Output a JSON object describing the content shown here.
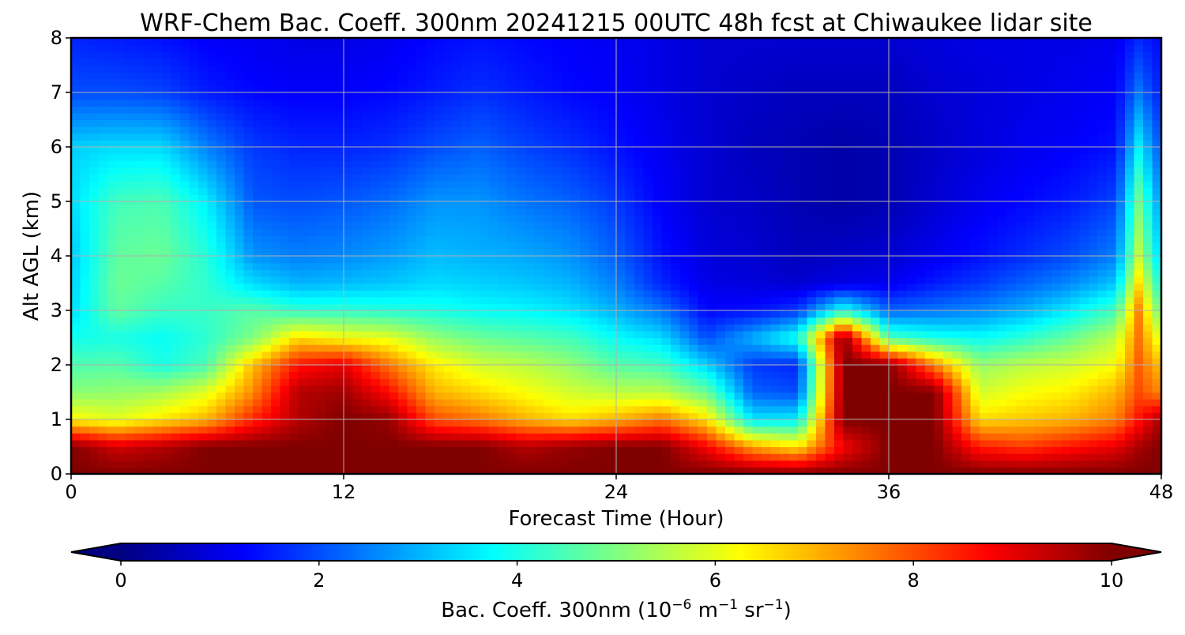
{
  "chart_data": {
    "type": "heatmap",
    "title": "WRF-Chem Bac. Coeff. 300nm  20241215 00UTC 48h fcst at Chiwaukee lidar site",
    "xlabel": "Forecast Time (Hour)",
    "ylabel": "Alt AGL (km)",
    "xlim": [
      0,
      48
    ],
    "ylim": [
      0,
      8
    ],
    "xticks": [
      0,
      12,
      24,
      36,
      48
    ],
    "yticks": [
      0,
      1,
      2,
      3,
      4,
      5,
      6,
      7,
      8
    ],
    "grid": true,
    "colormap": "jet",
    "colorbar": {
      "label_prefix": "Bac. Coeff. 300nm  (10",
      "label_exp1": "−6",
      "label_mid": " m",
      "label_exp2": "−1",
      "label_mid2": " sr",
      "label_exp3": "−1",
      "label_suffix": ")",
      "min": 0,
      "max": 10,
      "ticks": [
        0,
        2,
        4,
        6,
        8,
        10
      ],
      "extend": "both",
      "placement": "bottom"
    },
    "x": [
      0,
      2,
      4,
      6,
      8,
      10,
      12,
      14,
      16,
      18,
      20,
      22,
      24,
      26,
      28,
      30,
      32,
      34,
      36,
      38,
      40,
      42,
      44,
      46,
      47,
      48
    ],
    "y": [
      0,
      0.5,
      1,
      1.5,
      2,
      2.5,
      3,
      3.5,
      4,
      5,
      6,
      7,
      8
    ],
    "values": [
      [
        10,
        10,
        6.3,
        5.1,
        4.5,
        3.9,
        3.4,
        3.3,
        3.2,
        3.4,
        3.3,
        2.0,
        1.6
      ],
      [
        10,
        9.2,
        6.0,
        5.2,
        4.6,
        4.0,
        4.7,
        4.8,
        4.7,
        4.4,
        3.4,
        2.0,
        1.5
      ],
      [
        10,
        9.5,
        6.5,
        5.4,
        4.0,
        3.8,
        4.3,
        4.6,
        4.8,
        4.5,
        3.4,
        1.9,
        1.4
      ],
      [
        10,
        10,
        7.0,
        6.0,
        4.5,
        4.2,
        4.3,
        4.2,
        4.1,
        3.6,
        2.5,
        1.5,
        1.2
      ],
      [
        10,
        10,
        8.4,
        7.4,
        6.9,
        5.0,
        4.6,
        3.4,
        2.7,
        2.1,
        1.8,
        1.3,
        1.1
      ],
      [
        10,
        10,
        9.5,
        9.5,
        8.6,
        6.6,
        4.2,
        3.0,
        2.5,
        2.0,
        1.6,
        1.2,
        1.0
      ],
      [
        10,
        10,
        10,
        9.7,
        9.0,
        6.2,
        4.2,
        3.1,
        2.6,
        2.1,
        1.6,
        1.2,
        1.0
      ],
      [
        10,
        10,
        9.8,
        8.7,
        7.6,
        6.0,
        4.1,
        3.2,
        2.8,
        2.3,
        1.7,
        1.3,
        1.1
      ],
      [
        10,
        10,
        8.0,
        7.0,
        6.4,
        5.2,
        4.0,
        3.4,
        3.1,
        2.7,
        2.0,
        1.5,
        1.3
      ],
      [
        10,
        10,
        7.6,
        6.6,
        5.8,
        4.8,
        3.8,
        3.3,
        3.0,
        2.7,
        2.2,
        1.7,
        1.4
      ],
      [
        10,
        9.5,
        7.0,
        6.2,
        5.6,
        4.6,
        3.7,
        3.2,
        2.9,
        2.4,
        1.9,
        1.5,
        1.3
      ],
      [
        10,
        9.8,
        6.6,
        5.8,
        5.2,
        4.4,
        3.5,
        3.0,
        2.7,
        2.2,
        1.7,
        1.3,
        1.2
      ],
      [
        10,
        10,
        7.0,
        5.6,
        4.6,
        3.8,
        3.0,
        2.5,
        2.2,
        1.8,
        1.4,
        1.2,
        1.1
      ],
      [
        10,
        10,
        7.6,
        5.6,
        4.4,
        3.4,
        2.4,
        1.6,
        1.4,
        1.2,
        1.1,
        1.0,
        1.0
      ],
      [
        10,
        8.8,
        6.5,
        4.8,
        3.3,
        2.0,
        1.3,
        1.0,
        0.9,
        0.8,
        0.8,
        0.8,
        0.8
      ],
      [
        10,
        7.2,
        3.5,
        2.2,
        1.8,
        3.0,
        1.4,
        0.9,
        0.8,
        0.7,
        0.6,
        0.7,
        0.8
      ],
      [
        10,
        6.5,
        3.6,
        2.0,
        1.6,
        4.0,
        1.8,
        0.8,
        0.6,
        0.5,
        0.5,
        0.6,
        0.8
      ],
      [
        10,
        8.8,
        10,
        10,
        10,
        10,
        4.0,
        1.0,
        0.7,
        0.4,
        0.4,
        0.6,
        0.8
      ],
      [
        10,
        10,
        10,
        10,
        10,
        4.5,
        2.2,
        1.1,
        0.8,
        0.5,
        0.5,
        0.6,
        0.8
      ],
      [
        10,
        10,
        10,
        10,
        7.5,
        4.0,
        2.4,
        1.5,
        1.1,
        0.8,
        0.7,
        0.8,
        0.9
      ],
      [
        10,
        8.5,
        6.6,
        5.8,
        5.2,
        3.8,
        2.6,
        1.8,
        1.4,
        1.1,
        0.9,
        0.9,
        1.0
      ],
      [
        10,
        8.2,
        6.8,
        6.2,
        5.6,
        4.2,
        3.0,
        2.2,
        1.7,
        1.3,
        1.1,
        1.0,
        1.0
      ],
      [
        10,
        8.6,
        7.0,
        6.4,
        5.8,
        4.8,
        3.6,
        2.6,
        2.0,
        1.5,
        1.2,
        1.1,
        1.0
      ],
      [
        10,
        9.0,
        7.5,
        7.0,
        6.2,
        5.6,
        4.4,
        3.2,
        2.5,
        1.9,
        1.4,
        1.2,
        1.1
      ],
      [
        10,
        9.6,
        8.6,
        8.0,
        7.8,
        7.6,
        7.4,
        6.5,
        5.6,
        4.8,
        3.6,
        2.4,
        1.6
      ],
      [
        10,
        10,
        9.6,
        7.4,
        6.8,
        5.8,
        4.6,
        3.8,
        3.2,
        2.6,
        2.0,
        1.5,
        1.3
      ]
    ]
  }
}
